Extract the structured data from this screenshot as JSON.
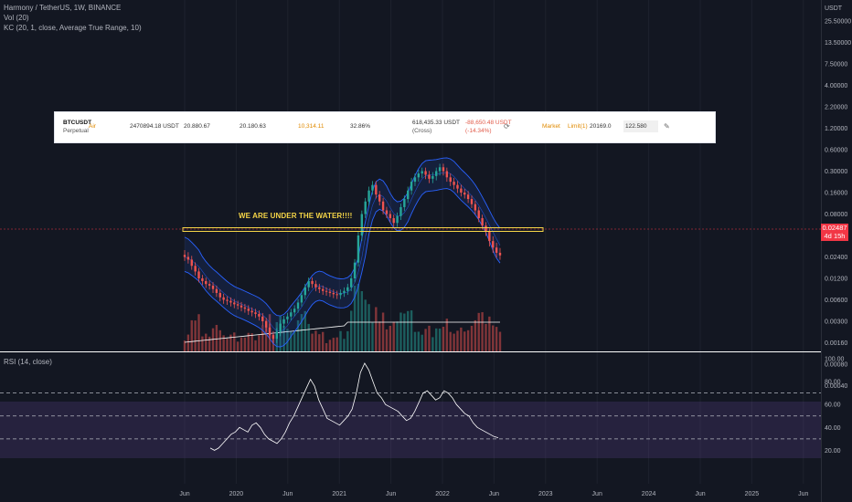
{
  "header": {
    "title": "Harmony / TetherUS, 1W, BINANCE",
    "vol_legend": "Vol (20)",
    "kc_legend": "KC (20, 1, close, Average True Range, 10)",
    "rsi_legend": "RSI (14, close)"
  },
  "ticker_overlay": {
    "symbol": "BTCUSDT",
    "contract": "Perpetual",
    "side": "Air",
    "balance": "2470894.18 USDT",
    "entry": "20.880.67",
    "mark": "20.180.63",
    "liq": "10,314.11",
    "margin_ratio": "32.86%",
    "margin": "618,435.33 USDT",
    "margin_type": "(Cross)",
    "pnl": "-88,650.48 USDT",
    "pnl_pct": "(-14.34%)",
    "order_type": "Market",
    "limit_label": "Limit(1)",
    "limit_price": "20169.0",
    "qty": "122.580"
  },
  "annotation": "WE ARE UNDER THE WATER!!!!",
  "price_tag": {
    "price": "0.02487",
    "countdown": "4d 15h"
  },
  "colors": {
    "background": "#131722",
    "up": "#26a69a",
    "down": "#ef5350",
    "kc_band": "#2962ff",
    "rsi_band": "#7e57c2",
    "annotation": "#f5d547"
  },
  "chart_data": {
    "type": "candlestick",
    "price_axis": {
      "unit": "USDT",
      "scale": "log",
      "ticks": [
        "25.50000",
        "13.50000",
        "7.50000",
        "4.00000",
        "2.20000",
        "1.20000",
        "0.60000",
        "0.30000",
        "0.16000",
        "0.08000",
        "0.04000",
        "0.02400",
        "0.01200",
        "0.00600",
        "0.00300",
        "0.00160",
        "0.00080",
        "0.00040"
      ]
    },
    "time_axis": {
      "ticks": [
        "Jun",
        "2020",
        "Jun",
        "2021",
        "Jun",
        "2022",
        "Jun",
        "2023",
        "Jun",
        "2024",
        "Jun",
        "2025",
        "Jun"
      ]
    },
    "rsi_axis": {
      "ticks": [
        "100.00",
        "80.00",
        "60.00",
        "40.00",
        "20.00"
      ]
    },
    "rsi_levels": [
      70,
      50,
      30
    ],
    "support_level": 0.024,
    "series_close": [
      0.024,
      0.022,
      0.018,
      0.015,
      0.012,
      0.011,
      0.01,
      0.0095,
      0.0085,
      0.0075,
      0.0065,
      0.006,
      0.0058,
      0.0055,
      0.0052,
      0.005,
      0.0047,
      0.0045,
      0.0042,
      0.004,
      0.0038,
      0.0035,
      0.003,
      0.0025,
      0.002,
      0.0018,
      0.0022,
      0.0028,
      0.0032,
      0.0035,
      0.004,
      0.0045,
      0.0055,
      0.007,
      0.009,
      0.011,
      0.01,
      0.009,
      0.0085,
      0.008,
      0.0078,
      0.0075,
      0.0072,
      0.007,
      0.0075,
      0.008,
      0.009,
      0.012,
      0.02,
      0.04,
      0.08,
      0.12,
      0.17,
      0.2,
      0.15,
      0.12,
      0.09,
      0.08,
      0.07,
      0.06,
      0.075,
      0.1,
      0.13,
      0.17,
      0.22,
      0.25,
      0.28,
      0.3,
      0.27,
      0.24,
      0.26,
      0.3,
      0.34,
      0.3,
      0.25,
      0.22,
      0.2,
      0.18,
      0.16,
      0.15,
      0.13,
      0.11,
      0.09,
      0.07,
      0.055,
      0.045,
      0.035,
      0.03,
      0.0265,
      0.0249
    ],
    "series_rsi": [
      22,
      20,
      22,
      26,
      30,
      34,
      36,
      40,
      38,
      36,
      42,
      44,
      40,
      34,
      30,
      28,
      26,
      30,
      36,
      44,
      50,
      58,
      66,
      74,
      82,
      76,
      64,
      56,
      48,
      46,
      44,
      42,
      46,
      50,
      56,
      70,
      88,
      96,
      90,
      80,
      70,
      66,
      60,
      58,
      56,
      54,
      50,
      46,
      48,
      54,
      62,
      70,
      72,
      68,
      64,
      66,
      72,
      70,
      66,
      60,
      56,
      52,
      50,
      44,
      40,
      38,
      36,
      34,
      32,
      31
    ]
  }
}
